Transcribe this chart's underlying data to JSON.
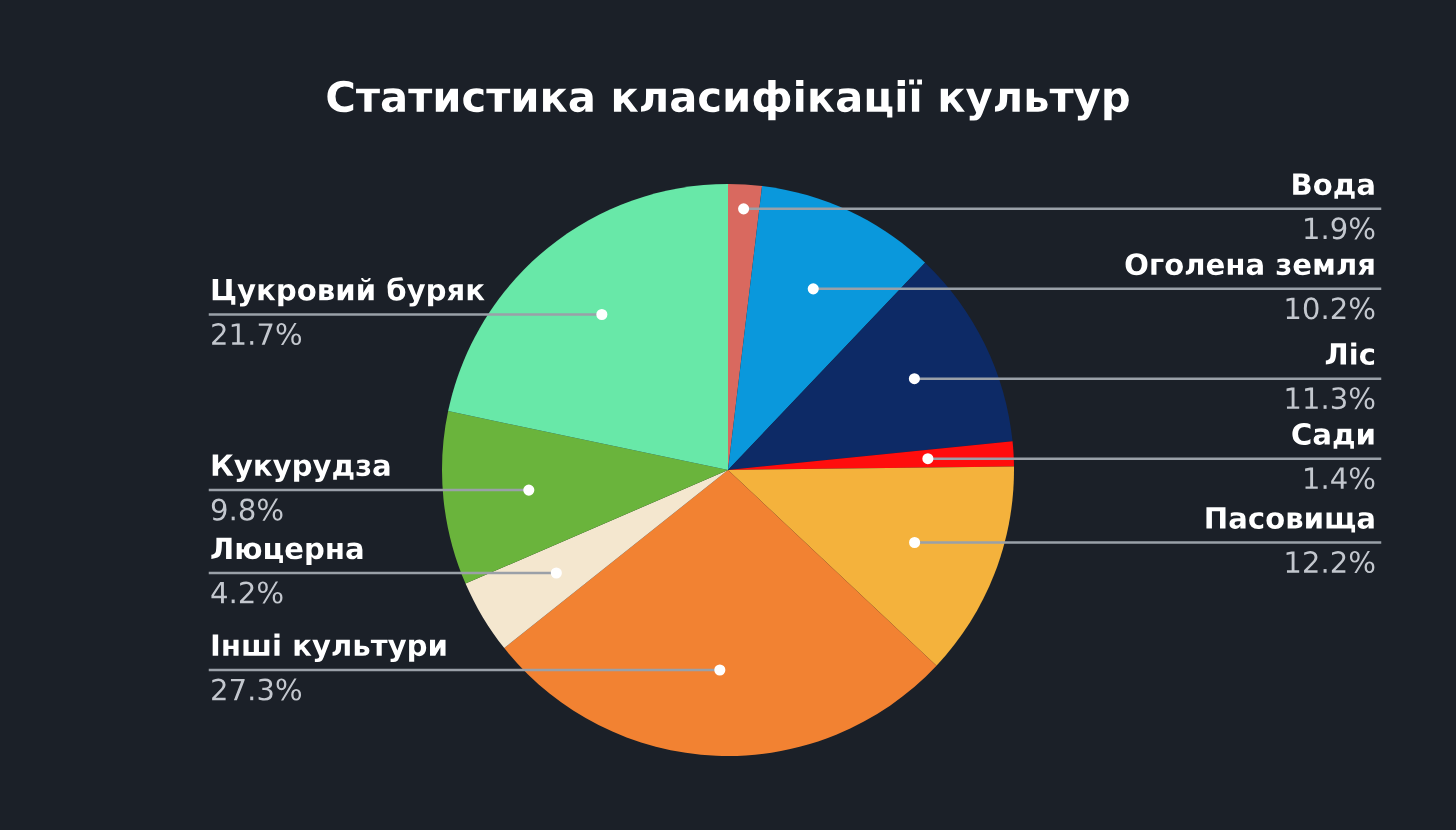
{
  "chart_data": {
    "type": "pie",
    "title": "Статистика класифікації культур",
    "categories": [
      "Вода",
      "Оголена земля",
      "Ліс",
      "Сади",
      "Пасовища",
      "Інші культури",
      "Люцерна",
      "Кукурудза",
      "Цукровий буряк"
    ],
    "values": [
      1.9,
      10.2,
      11.3,
      1.4,
      12.2,
      27.3,
      4.2,
      9.8,
      21.7
    ],
    "value_labels": [
      "1.9%",
      "10.2%",
      "11.3%",
      "1.4%",
      "12.2%",
      "27.3%",
      "4.2%",
      "9.8%",
      "21.7%"
    ],
    "colors": [
      "#d9695f",
      "#0a98dc",
      "#0d2a66",
      "#ff0d0d",
      "#f4b23c",
      "#f28232",
      "#f4e7cf",
      "#6ab43c",
      "#68e8a8"
    ],
    "legend": false
  }
}
